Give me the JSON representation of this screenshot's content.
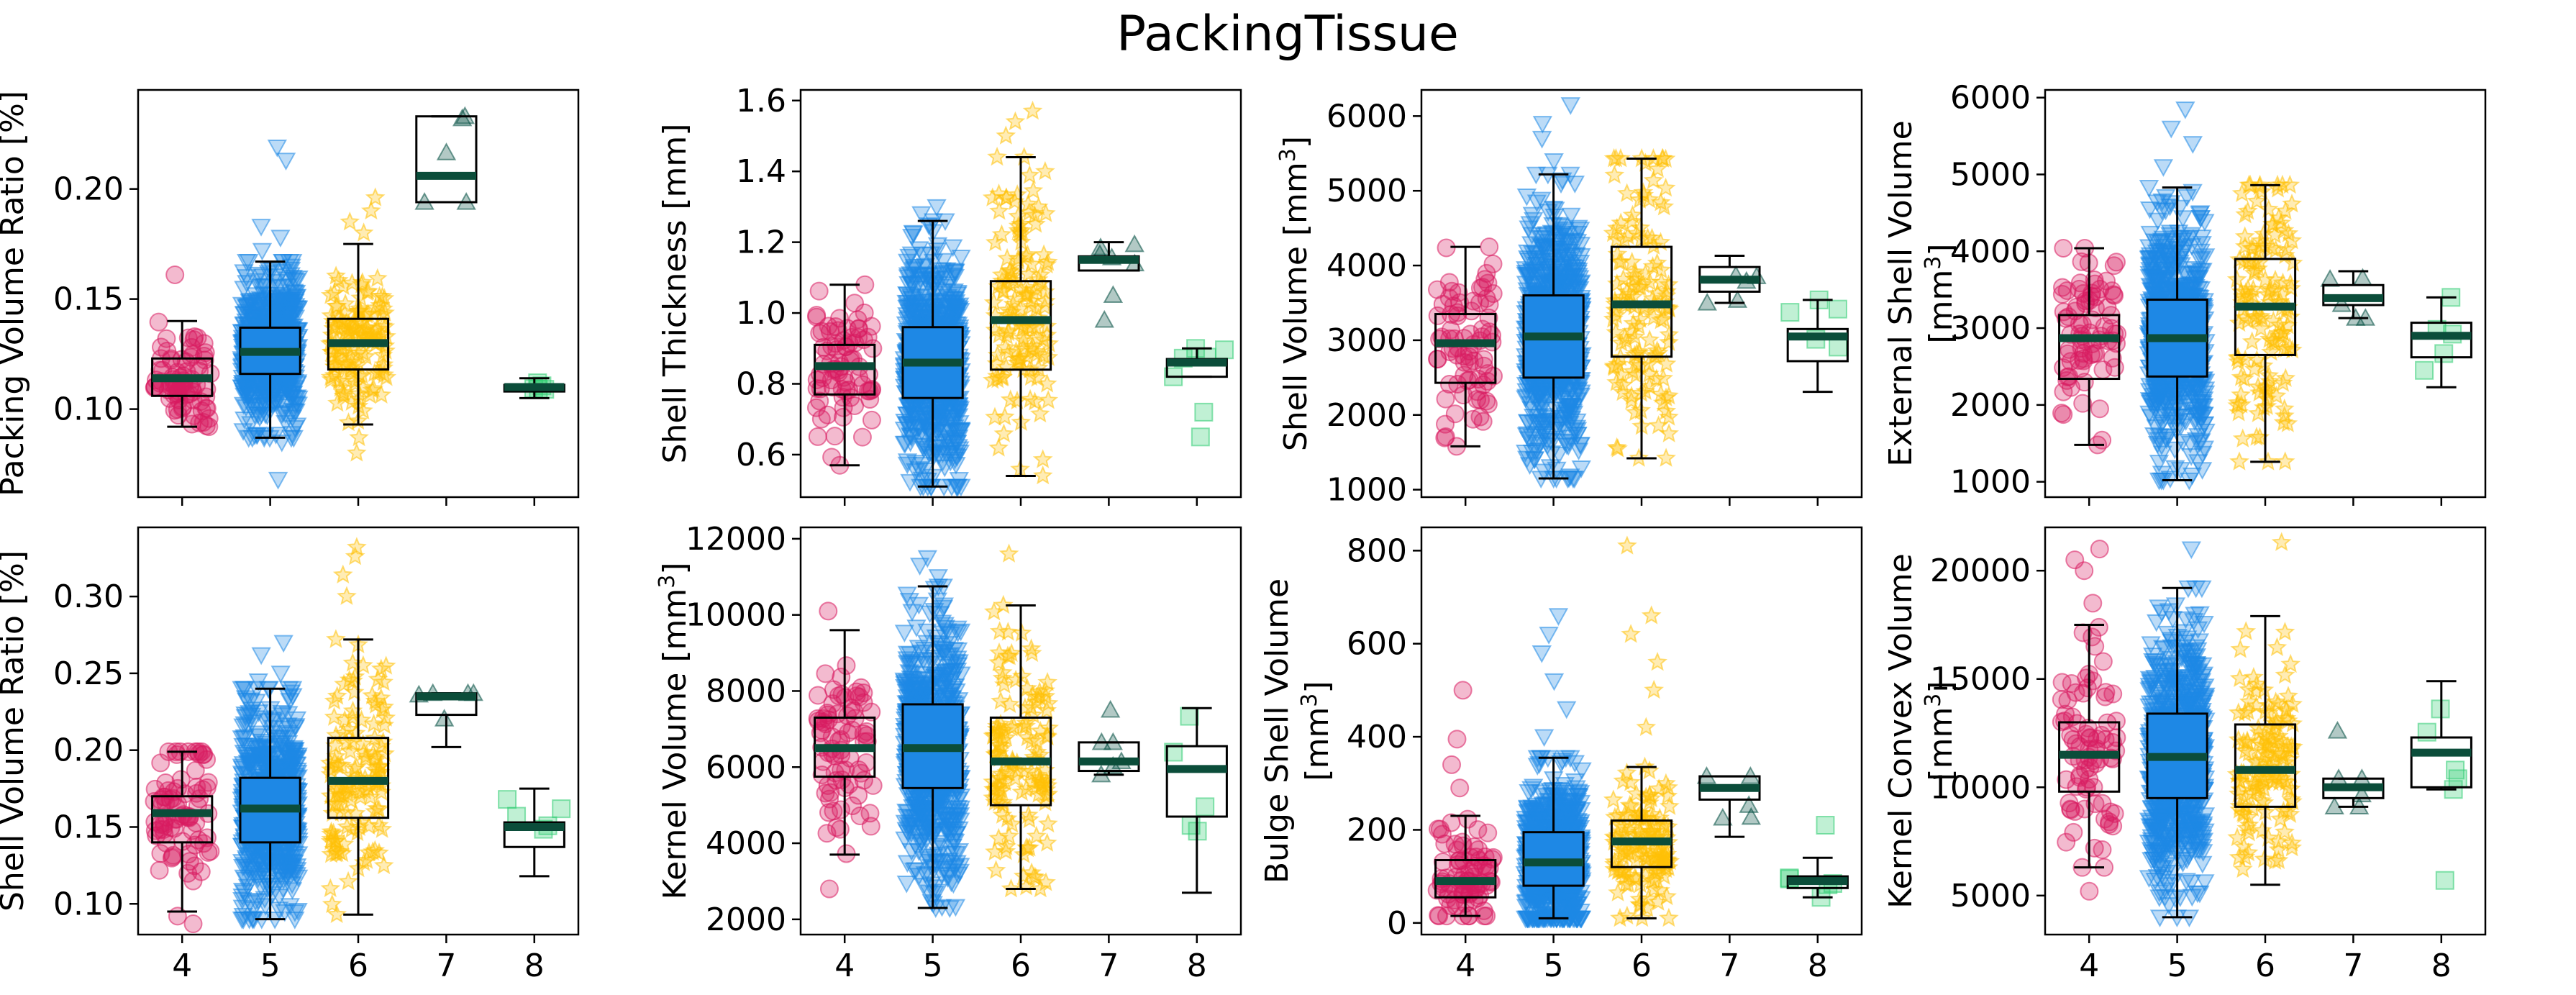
{
  "figure": {
    "title": "PackingTissue",
    "colors": {
      "4": "#d81b60",
      "5": "#1e88e5",
      "6": "#ffc107",
      "7": "#004d40",
      "8": "#2ecc71",
      "median": "#0b4d3a"
    },
    "markers": {
      "4": "circle",
      "5": "triangle-down",
      "6": "star",
      "7": "triangle-up",
      "8": "square"
    }
  },
  "chart_data": [
    {
      "type": "box",
      "ylabel": "Packing Volume Ratio [%]",
      "categories": [
        "4",
        "5",
        "6",
        "7",
        "8"
      ],
      "ylim": [
        0.06,
        0.245
      ],
      "yticks": [
        0.1,
        0.15,
        0.2
      ],
      "ytick_labels": [
        "0.10",
        "0.15",
        "0.20"
      ],
      "show_xticklabels": false,
      "boxes": [
        {
          "category": "4",
          "whisker_low": 0.092,
          "q1": 0.106,
          "median": 0.114,
          "q3": 0.123,
          "whisker_high": 0.14,
          "n_points": 80,
          "outliers": [
            0.161
          ]
        },
        {
          "category": "5",
          "whisker_low": 0.087,
          "q1": 0.116,
          "median": 0.126,
          "q3": 0.137,
          "whisker_high": 0.167,
          "n_points": 700,
          "outliers": [
            0.068,
            0.085,
            0.088,
            0.172,
            0.178,
            0.183,
            0.213,
            0.219
          ]
        },
        {
          "category": "6",
          "whisker_low": 0.093,
          "q1": 0.118,
          "median": 0.13,
          "q3": 0.141,
          "whisker_high": 0.175,
          "n_points": 140,
          "outliers": [
            0.08,
            0.087,
            0.18,
            0.185,
            0.19,
            0.196
          ]
        },
        {
          "category": "7",
          "whisker_low": 0.194,
          "q1": 0.194,
          "median": 0.206,
          "q3": 0.233,
          "whisker_high": 0.233,
          "n_points": 5,
          "outliers": []
        },
        {
          "category": "8",
          "whisker_low": 0.105,
          "q1": 0.108,
          "median": 0.11,
          "q3": 0.111,
          "whisker_high": 0.114,
          "n_points": 5,
          "outliers": []
        }
      ]
    },
    {
      "type": "box",
      "ylabel": "Shell Thickness [mm]",
      "categories": [
        "4",
        "5",
        "6",
        "7",
        "8"
      ],
      "ylim": [
        0.48,
        1.63
      ],
      "yticks": [
        0.6,
        0.8,
        1.0,
        1.2,
        1.4,
        1.6
      ],
      "ytick_labels": [
        "0.6",
        "0.8",
        "1.0",
        "1.2",
        "1.4",
        "1.6"
      ],
      "show_xticklabels": false,
      "boxes": [
        {
          "category": "4",
          "whisker_low": 0.57,
          "q1": 0.77,
          "median": 0.85,
          "q3": 0.91,
          "whisker_high": 1.08,
          "n_points": 80,
          "outliers": []
        },
        {
          "category": "5",
          "whisker_low": 0.51,
          "q1": 0.76,
          "median": 0.86,
          "q3": 0.96,
          "whisker_high": 1.26,
          "n_points": 700,
          "outliers": [
            1.28,
            1.3
          ]
        },
        {
          "category": "6",
          "whisker_low": 0.54,
          "q1": 0.84,
          "median": 0.98,
          "q3": 1.09,
          "whisker_high": 1.44,
          "n_points": 140,
          "outliers": [
            1.5,
            1.54,
            1.57
          ]
        },
        {
          "category": "7",
          "whisker_low": 1.12,
          "q1": 1.12,
          "median": 1.15,
          "q3": 1.16,
          "whisker_high": 1.2,
          "n_points": 5,
          "outliers": [
            0.98,
            1.05
          ]
        },
        {
          "category": "8",
          "whisker_low": 0.82,
          "q1": 0.82,
          "median": 0.86,
          "q3": 0.87,
          "whisker_high": 0.9,
          "n_points": 5,
          "outliers": [
            0.65,
            0.72
          ]
        }
      ]
    },
    {
      "type": "box",
      "ylabel": "Shell Volume [mm³]",
      "categories": [
        "4",
        "5",
        "6",
        "7",
        "8"
      ],
      "ylim": [
        900,
        6350
      ],
      "yticks": [
        1000,
        2000,
        3000,
        4000,
        5000,
        6000
      ],
      "ytick_labels": [
        "1000",
        "2000",
        "3000",
        "4000",
        "5000",
        "6000"
      ],
      "show_xticklabels": false,
      "boxes": [
        {
          "category": "4",
          "whisker_low": 1580,
          "q1": 2430,
          "median": 2960,
          "q3": 3350,
          "whisker_high": 4250,
          "n_points": 80,
          "outliers": []
        },
        {
          "category": "5",
          "whisker_low": 1150,
          "q1": 2500,
          "median": 3050,
          "q3": 3600,
          "whisker_high": 5220,
          "n_points": 700,
          "outliers": [
            5400,
            5700,
            5900,
            6150
          ]
        },
        {
          "category": "6",
          "whisker_low": 1420,
          "q1": 2780,
          "median": 3480,
          "q3": 4250,
          "whisker_high": 5430,
          "n_points": 140,
          "outliers": []
        },
        {
          "category": "7",
          "whisker_low": 3500,
          "q1": 3650,
          "median": 3810,
          "q3": 3980,
          "whisker_high": 4130,
          "n_points": 5,
          "outliers": []
        },
        {
          "category": "8",
          "whisker_low": 2310,
          "q1": 2720,
          "median": 3050,
          "q3": 3150,
          "whisker_high": 3540,
          "n_points": 5,
          "outliers": []
        }
      ]
    },
    {
      "type": "box",
      "ylabel": "External Shell Volume [mm³]",
      "ylabel_lines": [
        "External Shell Volume",
        "[mm",
        "3",
        "]"
      ],
      "categories": [
        "4",
        "5",
        "6",
        "7",
        "8"
      ],
      "ylim": [
        800,
        6100
      ],
      "yticks": [
        1000,
        2000,
        3000,
        4000,
        5000,
        6000
      ],
      "ytick_labels": [
        "1000",
        "2000",
        "3000",
        "4000",
        "5000",
        "6000"
      ],
      "show_xticklabels": false,
      "boxes": [
        {
          "category": "4",
          "whisker_low": 1480,
          "q1": 2340,
          "median": 2870,
          "q3": 3170,
          "whisker_high": 4040,
          "n_points": 80,
          "outliers": []
        },
        {
          "category": "5",
          "whisker_low": 1020,
          "q1": 2370,
          "median": 2870,
          "q3": 3370,
          "whisker_high": 4830,
          "n_points": 700,
          "outliers": [
            5100,
            5400,
            5600,
            5850
          ]
        },
        {
          "category": "6",
          "whisker_low": 1260,
          "q1": 2650,
          "median": 3280,
          "q3": 3900,
          "whisker_high": 4860,
          "n_points": 140,
          "outliers": []
        },
        {
          "category": "7",
          "whisker_low": 3130,
          "q1": 3300,
          "median": 3390,
          "q3": 3560,
          "whisker_high": 3740,
          "n_points": 5,
          "outliers": []
        },
        {
          "category": "8",
          "whisker_low": 2230,
          "q1": 2620,
          "median": 2900,
          "q3": 3070,
          "whisker_high": 3400,
          "n_points": 5,
          "outliers": []
        }
      ]
    },
    {
      "type": "box",
      "ylabel": "Shell Volume Ratio [%]",
      "categories": [
        "4",
        "5",
        "6",
        "7",
        "8"
      ],
      "ylim": [
        0.08,
        0.345
      ],
      "yticks": [
        0.1,
        0.15,
        0.2,
        0.25,
        0.3
      ],
      "ytick_labels": [
        "0.10",
        "0.15",
        "0.20",
        "0.25",
        "0.30"
      ],
      "show_xticklabels": true,
      "boxes": [
        {
          "category": "4",
          "whisker_low": 0.095,
          "q1": 0.14,
          "median": 0.159,
          "q3": 0.17,
          "whisker_high": 0.199,
          "n_points": 80,
          "outliers": [
            0.087,
            0.092
          ]
        },
        {
          "category": "5",
          "whisker_low": 0.09,
          "q1": 0.14,
          "median": 0.162,
          "q3": 0.182,
          "whisker_high": 0.24,
          "n_points": 700,
          "outliers": [
            0.245,
            0.25,
            0.262,
            0.27
          ]
        },
        {
          "category": "6",
          "whisker_low": 0.093,
          "q1": 0.156,
          "median": 0.18,
          "q3": 0.208,
          "whisker_high": 0.272,
          "n_points": 140,
          "outliers": [
            0.3,
            0.314,
            0.326,
            0.332
          ]
        },
        {
          "category": "7",
          "whisker_low": 0.202,
          "q1": 0.223,
          "median": 0.235,
          "q3": 0.237,
          "whisker_high": 0.237,
          "n_points": 5,
          "outliers": []
        },
        {
          "category": "8",
          "whisker_low": 0.118,
          "q1": 0.137,
          "median": 0.15,
          "q3": 0.153,
          "whisker_high": 0.175,
          "n_points": 5,
          "outliers": []
        }
      ]
    },
    {
      "type": "box",
      "ylabel": "Kernel Volume [mm³]",
      "categories": [
        "4",
        "5",
        "6",
        "7",
        "8"
      ],
      "ylim": [
        1600,
        12300
      ],
      "yticks": [
        2000,
        4000,
        6000,
        8000,
        10000,
        12000
      ],
      "ytick_labels": [
        "2000",
        "4000",
        "6000",
        "8000",
        "10000",
        "12000"
      ],
      "show_xticklabels": true,
      "boxes": [
        {
          "category": "4",
          "whisker_low": 3700,
          "q1": 5750,
          "median": 6500,
          "q3": 7300,
          "whisker_high": 9600,
          "n_points": 80,
          "outliers": [
            2800,
            10100
          ]
        },
        {
          "category": "5",
          "whisker_low": 2300,
          "q1": 5450,
          "median": 6500,
          "q3": 7650,
          "whisker_high": 10750,
          "n_points": 700,
          "outliers": [
            11000,
            11300,
            11500
          ]
        },
        {
          "category": "6",
          "whisker_low": 2800,
          "q1": 5000,
          "median": 6150,
          "q3": 7300,
          "whisker_high": 10250,
          "n_points": 140,
          "outliers": [
            11600
          ]
        },
        {
          "category": "7",
          "whisker_low": 5800,
          "q1": 5900,
          "median": 6150,
          "q3": 6650,
          "whisker_high": 6650,
          "n_points": 5,
          "outliers": [
            7500
          ]
        },
        {
          "category": "8",
          "whisker_low": 2700,
          "q1": 4700,
          "median": 5950,
          "q3": 6550,
          "whisker_high": 7550,
          "n_points": 5,
          "outliers": []
        }
      ]
    },
    {
      "type": "box",
      "ylabel": "Bulge Shell Volume [mm³]",
      "ylabel_lines": [
        "Bulge Shell Volume",
        "[mm",
        "3",
        "]"
      ],
      "categories": [
        "4",
        "5",
        "6",
        "7",
        "8"
      ],
      "ylim": [
        -25,
        850
      ],
      "yticks": [
        0,
        200,
        400,
        600,
        800
      ],
      "ytick_labels": [
        "0",
        "200",
        "400",
        "600",
        "800"
      ],
      "show_xticklabels": true,
      "boxes": [
        {
          "category": "4",
          "whisker_low": 15,
          "q1": 55,
          "median": 90,
          "q3": 135,
          "whisker_high": 230,
          "n_points": 80,
          "outliers": [
            290,
            340,
            395,
            500
          ]
        },
        {
          "category": "5",
          "whisker_low": 10,
          "q1": 80,
          "median": 130,
          "q3": 195,
          "whisker_high": 355,
          "n_points": 700,
          "outliers": [
            400,
            460,
            520,
            580,
            620,
            660
          ]
        },
        {
          "category": "6",
          "whisker_low": 10,
          "q1": 120,
          "median": 175,
          "q3": 220,
          "whisker_high": 335,
          "n_points": 140,
          "outliers": [
            420,
            500,
            560,
            620,
            660,
            810
          ]
        },
        {
          "category": "7",
          "whisker_low": 185,
          "q1": 265,
          "median": 290,
          "q3": 315,
          "whisker_high": 315,
          "n_points": 5,
          "outliers": []
        },
        {
          "category": "8",
          "whisker_low": 55,
          "q1": 75,
          "median": 90,
          "q3": 100,
          "whisker_high": 140,
          "n_points": 5,
          "outliers": [
            210
          ]
        }
      ]
    },
    {
      "type": "box",
      "ylabel": "Kernel Convex Volume [mm³]",
      "ylabel_lines": [
        "Kernel Convex Volume",
        "[mm",
        "3",
        "]"
      ],
      "categories": [
        "4",
        "5",
        "6",
        "7",
        "8"
      ],
      "ylim": [
        3200,
        22000
      ],
      "yticks": [
        5000,
        10000,
        15000,
        20000
      ],
      "ytick_labels": [
        "5000",
        "10000",
        "15000",
        "20000"
      ],
      "show_xticklabels": true,
      "boxes": [
        {
          "category": "4",
          "whisker_low": 6300,
          "q1": 9800,
          "median": 11500,
          "q3": 13000,
          "whisker_high": 17500,
          "n_points": 80,
          "outliers": [
            5200,
            18500,
            20000,
            20500,
            21000
          ]
        },
        {
          "category": "5",
          "whisker_low": 4000,
          "q1": 9500,
          "median": 11400,
          "q3": 13400,
          "whisker_high": 19200,
          "n_points": 700,
          "outliers": [
            21000
          ]
        },
        {
          "category": "6",
          "whisker_low": 5500,
          "q1": 9100,
          "median": 10800,
          "q3": 12900,
          "whisker_high": 17900,
          "n_points": 140,
          "outliers": [
            21300
          ]
        },
        {
          "category": "7",
          "whisker_low": 9100,
          "q1": 9500,
          "median": 10000,
          "q3": 10400,
          "whisker_high": 10400,
          "n_points": 5,
          "outliers": [
            12600
          ]
        },
        {
          "category": "8",
          "whisker_low": 9900,
          "q1": 10000,
          "median": 11600,
          "q3": 12300,
          "whisker_high": 14900,
          "n_points": 5,
          "outliers": [
            5700
          ]
        }
      ]
    }
  ]
}
